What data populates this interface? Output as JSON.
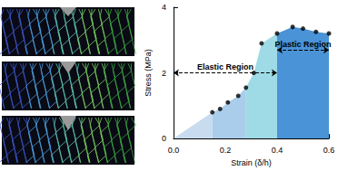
{
  "chart_data": {
    "type": "line",
    "x_label": "Strain (δ/h)",
    "y_label": "Stress (MPa)",
    "xlim": [
      0,
      0.6
    ],
    "ylim": [
      0,
      4
    ],
    "xticks": [
      {
        "value": 0,
        "label": "0.0"
      },
      0.2,
      0.4,
      0.6
    ],
    "yticks": [
      0,
      2,
      4
    ],
    "grid": false,
    "series": [
      {
        "type": "area",
        "color": "#c9dcef",
        "x": [
          0,
          0.15
        ],
        "values": [
          0,
          0.8
        ]
      },
      {
        "type": "area",
        "color": "#a9cdea",
        "x": [
          0.15,
          0.18,
          0.21,
          0.25,
          0.28
        ],
        "values": [
          0.8,
          0.9,
          1.1,
          1.3,
          1.55
        ]
      },
      {
        "type": "area",
        "color": "#9fdbe6",
        "x": [
          0.28,
          0.31,
          0.34,
          0.4
        ],
        "values": [
          1.55,
          2.0,
          2.9,
          3.2
        ]
      },
      {
        "type": "area",
        "color": "#4a93d6",
        "x": [
          0.4,
          0.46,
          0.5,
          0.55,
          0.6
        ],
        "values": [
          3.2,
          3.4,
          3.35,
          3.25,
          3.2
        ]
      },
      {
        "type": "scatter",
        "color": "#000000",
        "marker": "circle",
        "x": [
          0.15,
          0.18,
          0.21,
          0.25,
          0.28,
          0.31,
          0.34,
          0.4,
          0.46,
          0.5,
          0.55,
          0.6
        ],
        "values": [
          0.8,
          0.9,
          1.1,
          1.3,
          1.55,
          2.0,
          2.9,
          3.2,
          3.4,
          3.35,
          3.25,
          3.2
        ]
      }
    ],
    "annotations": [
      {
        "text": "Elastic Region",
        "x": [
          0,
          0.4
        ],
        "y": 2,
        "marker": "arrow",
        "line_style": "dashed"
      },
      {
        "text": "Plastic Region",
        "x": [
          0.4,
          0.6
        ],
        "y": 2.7,
        "marker": "arrow",
        "line_style": "dashed"
      }
    ]
  }
}
